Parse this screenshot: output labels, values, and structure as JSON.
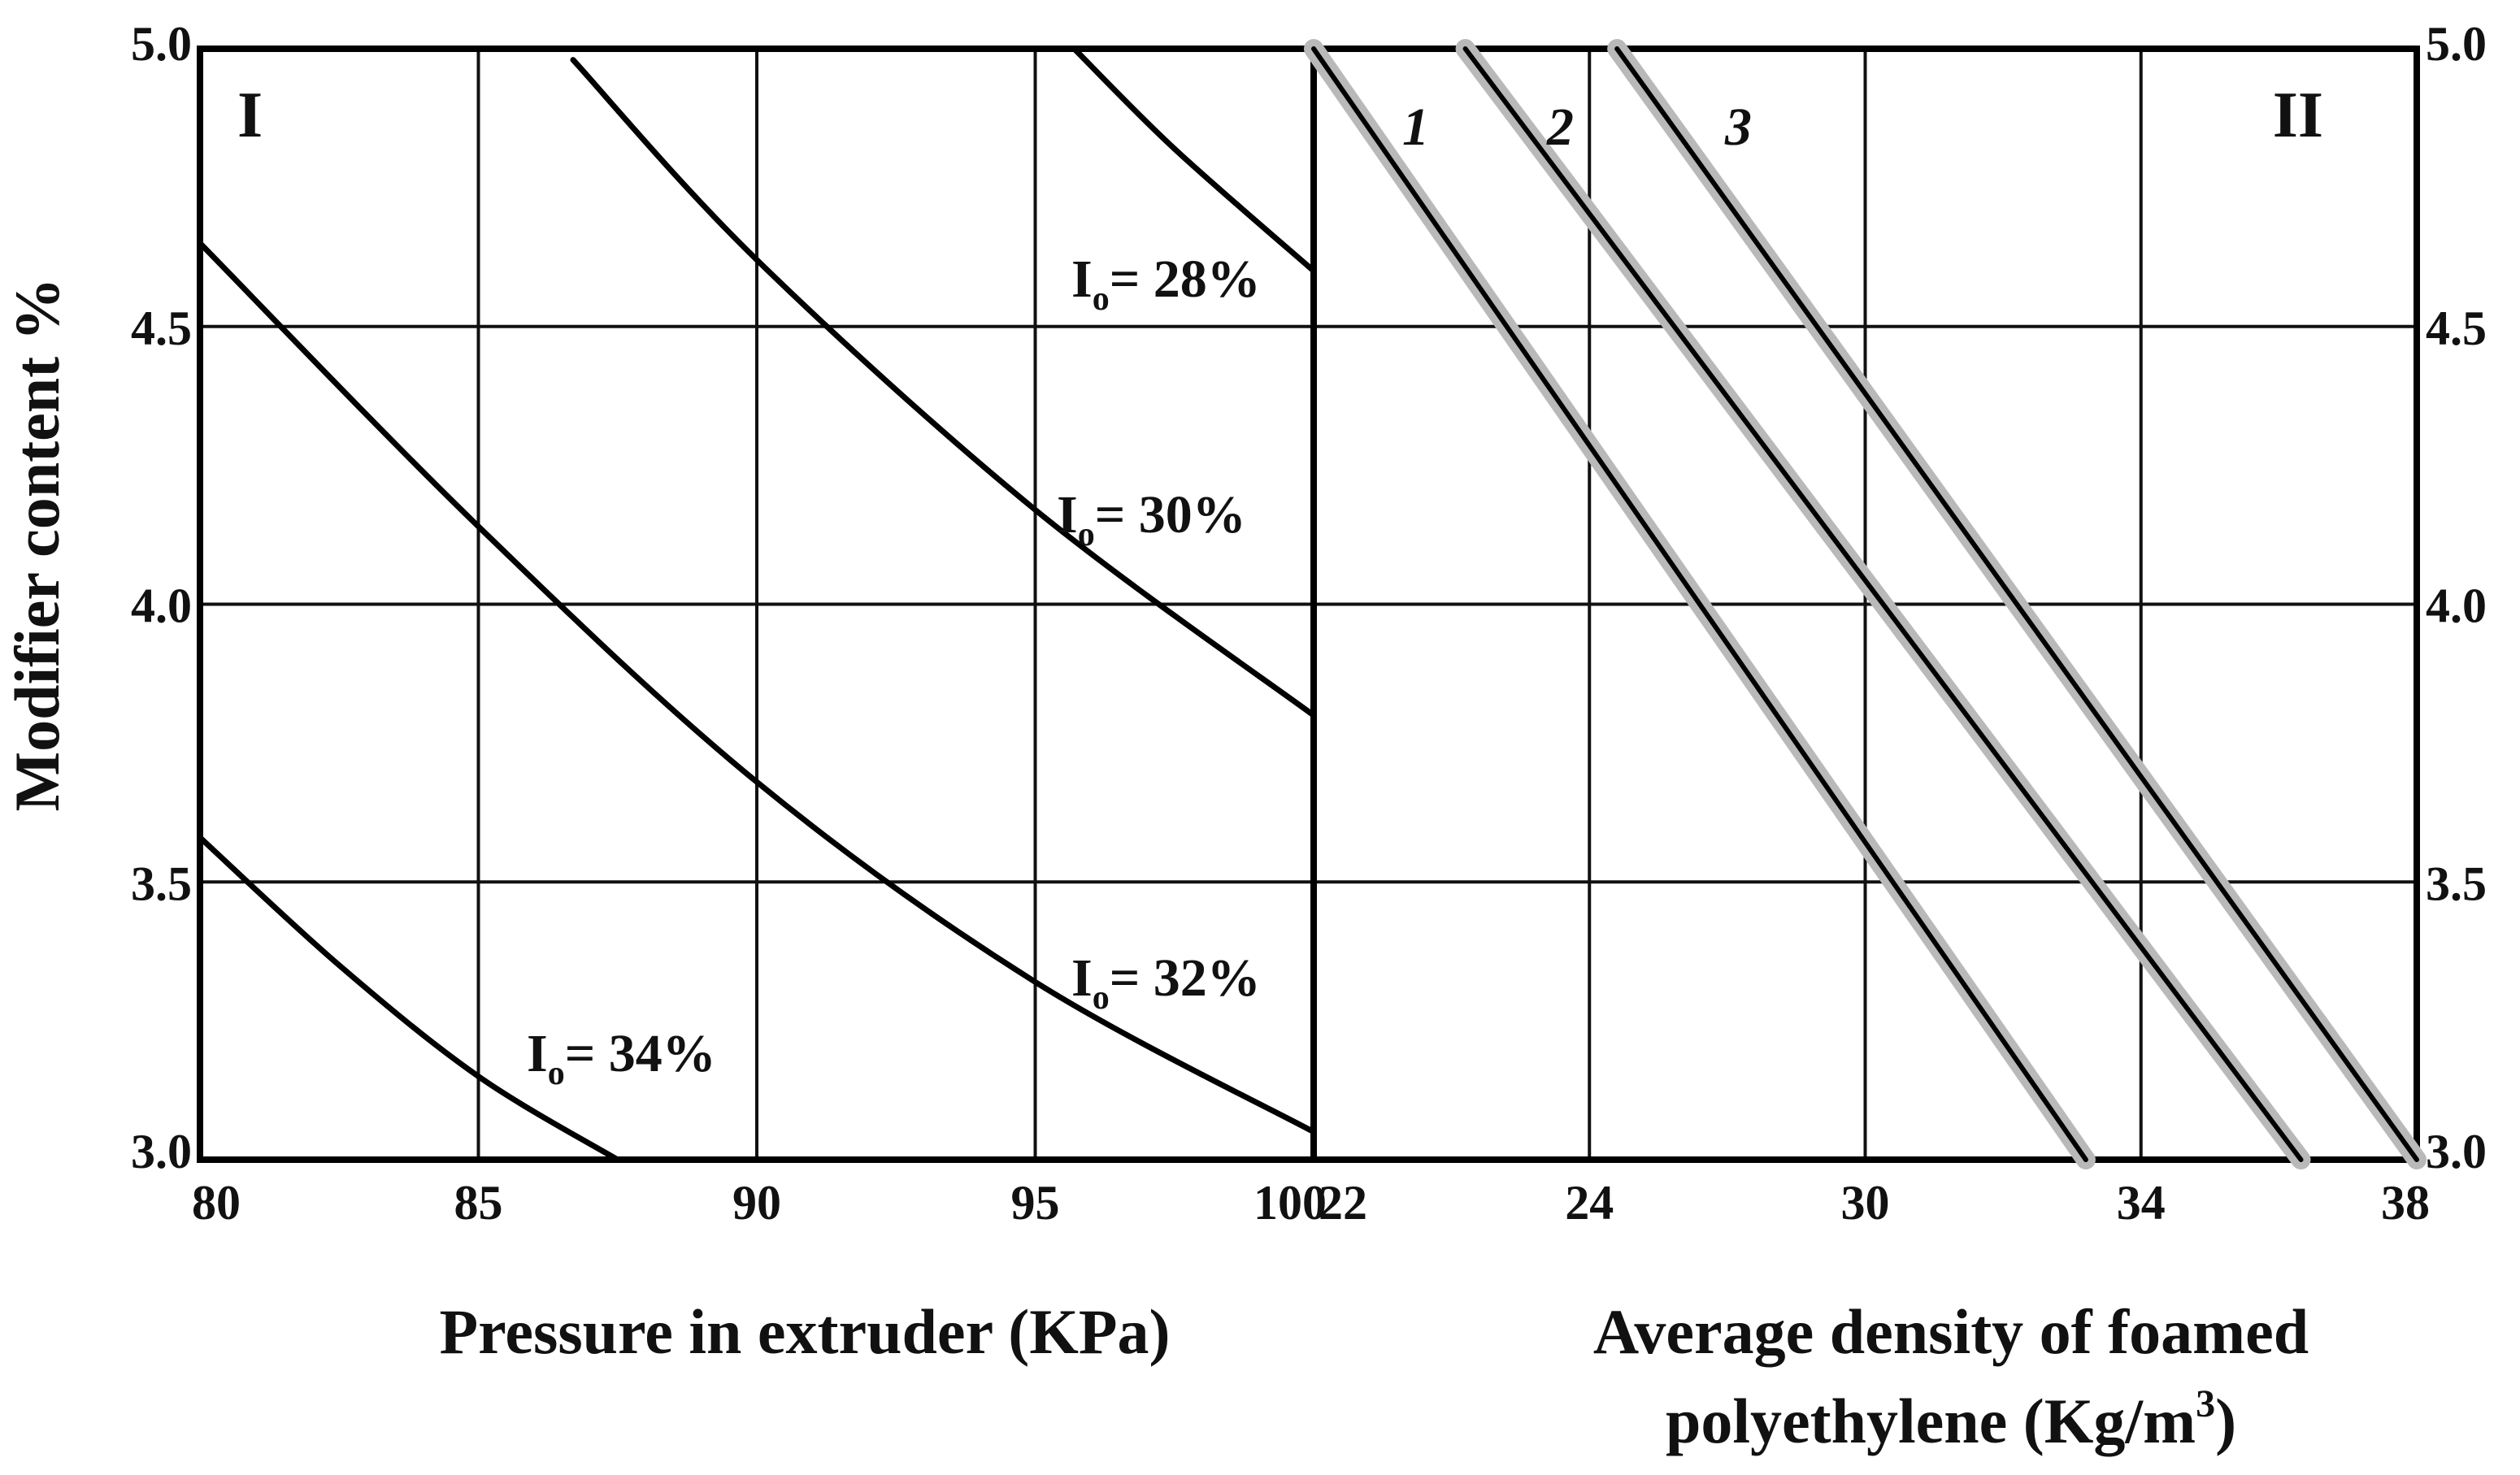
{
  "chart_data": [
    {
      "panel": "I",
      "type": "line",
      "xlabel": "Pressure in extruder (KPa)",
      "ylabel": "Modifier content %",
      "xlim": [
        80,
        100
      ],
      "ylim": [
        3.0,
        5.0
      ],
      "x_ticks": [
        "80",
        "85",
        "90",
        "95",
        "100"
      ],
      "y_ticks": [
        "3.0",
        "3.5",
        "4.0",
        "4.5",
        "5.0"
      ],
      "grid": true,
      "series": [
        {
          "name": "Io = 28%",
          "label_main": "I",
          "label_sub": "o",
          "label_rest": "= 28%",
          "x": [
            95.7,
            97.5,
            100
          ],
          "y": [
            5.0,
            4.82,
            4.6
          ]
        },
        {
          "name": "Io = 30%",
          "label_main": "I",
          "label_sub": "o",
          "label_rest": "= 30%",
          "x": [
            86.7,
            90,
            95,
            100
          ],
          "y": [
            4.98,
            4.62,
            4.17,
            3.8
          ]
        },
        {
          "name": "Io = 32%",
          "label_main": "I",
          "label_sub": "o",
          "label_rest": "= 32%",
          "x": [
            80,
            85,
            90,
            95,
            100
          ],
          "y": [
            4.65,
            4.14,
            3.68,
            3.32,
            3.05
          ]
        },
        {
          "name": "Io = 34%",
          "label_main": "I",
          "label_sub": "o",
          "label_rest": "= 34%",
          "x": [
            80,
            82.5,
            85,
            87.5
          ],
          "y": [
            3.58,
            3.35,
            3.15,
            3.0
          ]
        }
      ]
    },
    {
      "panel": "II",
      "type": "line",
      "xlabel": "Average density of foamed polyethylene (Kg/m³)",
      "xlabel_line1": "Average density of foamed",
      "xlabel_line2_base": "polyethylene (Kg/m",
      "xlabel_line2_sup": "3",
      "xlabel_line2_end": ")",
      "ylabel": "Modifier content %",
      "ylim": [
        3.0,
        5.0
      ],
      "x_ticks": [
        "22",
        "24",
        "30",
        "34",
        "38"
      ],
      "y_ticks": [
        "3.0",
        "3.5",
        "4.0",
        "4.5",
        "5.0"
      ],
      "grid": true,
      "series": [
        {
          "name": "1",
          "x_index": [
            0.0,
            2.8
          ],
          "y": [
            5.0,
            3.0
          ]
        },
        {
          "name": "2",
          "x_index": [
            0.55,
            3.58
          ],
          "y": [
            5.0,
            3.0
          ]
        },
        {
          "name": "3",
          "x_index": [
            1.1,
            4.0
          ],
          "y": [
            5.0,
            3.0
          ]
        }
      ]
    }
  ]
}
